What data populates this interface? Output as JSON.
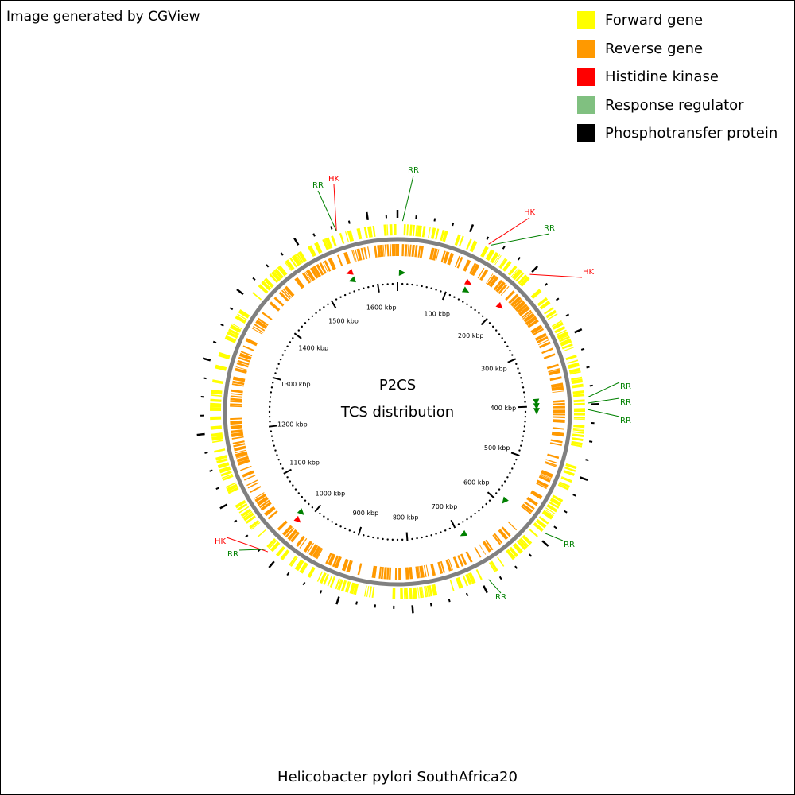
{
  "watermark": "Image generated by CGView",
  "caption": "Helicobacter pylori SouthAfrica20",
  "center": {
    "line1": "P2CS",
    "line2": "TCS distribution"
  },
  "legend": [
    {
      "label": "Forward gene",
      "color": "#ffff00"
    },
    {
      "label": "Reverse gene",
      "color": "#ff9900"
    },
    {
      "label": "Histidine kinase",
      "color": "#ff0000"
    },
    {
      "label": "Response regulator",
      "color": "#80c080"
    },
    {
      "label": "Phosphotransfer protein",
      "color": "#000000"
    }
  ],
  "colors": {
    "forward": "#ffff00",
    "reverse": "#ff9900",
    "hk": "#ff0000",
    "rr": "#008000",
    "backbone": "#808080"
  },
  "chart_data": {
    "type": "circular-genome-map",
    "genome_length_kbp": 1640,
    "tick_labels": [
      "100 kbp",
      "200 kbp",
      "300 kbp",
      "400 kbp",
      "500 kbp",
      "600 kbp",
      "700 kbp",
      "800 kbp",
      "900 kbp",
      "1000 kbp",
      "1100 kbp",
      "1200 kbp",
      "1300 kbp",
      "1400 kbp",
      "1500 kbp",
      "1600 kbp"
    ],
    "features": [
      {
        "label": "RR",
        "position_kbp": 7
      },
      {
        "label": "HK",
        "position_kbp": 1555
      },
      {
        "label": "RR",
        "position_kbp": 1555
      },
      {
        "label": "HK",
        "position_kbp": 130
      },
      {
        "label": "RR",
        "position_kbp": 133
      },
      {
        "label": "HK",
        "position_kbp": 200
      },
      {
        "label": "RR",
        "position_kbp": 390
      },
      {
        "label": "RR",
        "position_kbp": 398
      },
      {
        "label": "RR",
        "position_kbp": 407
      },
      {
        "label": "RR",
        "position_kbp": 590
      },
      {
        "label": "RR",
        "position_kbp": 690
      },
      {
        "label": "HK",
        "position_kbp": 1015
      },
      {
        "label": "RR",
        "position_kbp": 1020
      }
    ]
  }
}
